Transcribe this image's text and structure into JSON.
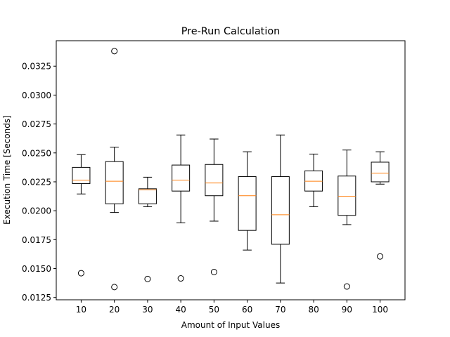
{
  "chart_data": {
    "type": "box",
    "title": "Pre-Run Calculation",
    "xlabel": "Amount of Input Values",
    "ylabel": "Execution Time [Seconds]",
    "categories": [
      "10",
      "20",
      "30",
      "40",
      "50",
      "60",
      "70",
      "80",
      "90",
      "100"
    ],
    "ylim": [
      0.0123,
      0.0347
    ],
    "yticks": [
      0.0125,
      0.015,
      0.0175,
      0.02,
      0.0225,
      0.025,
      0.0275,
      0.03,
      0.0325
    ],
    "ytick_labels": [
      "0.0125",
      "0.0150",
      "0.0175",
      "0.0200",
      "0.0225",
      "0.0250",
      "0.0275",
      "0.0300",
      "0.0325"
    ],
    "boxes": [
      {
        "category": "10",
        "whisker_low": 0.02145,
        "q1": 0.02235,
        "median": 0.02265,
        "q3": 0.02375,
        "whisker_high": 0.02485,
        "outliers": [
          0.0146
        ]
      },
      {
        "category": "20",
        "whisker_low": 0.01985,
        "q1": 0.0206,
        "median": 0.02255,
        "q3": 0.02425,
        "whisker_high": 0.0255,
        "outliers": [
          0.0338,
          0.0134
        ]
      },
      {
        "category": "30",
        "whisker_low": 0.02035,
        "q1": 0.0206,
        "median": 0.0218,
        "q3": 0.0219,
        "whisker_high": 0.0229,
        "outliers": [
          0.0141
        ]
      },
      {
        "category": "40",
        "whisker_low": 0.01895,
        "q1": 0.0217,
        "median": 0.02265,
        "q3": 0.02395,
        "whisker_high": 0.02655,
        "outliers": [
          0.01415
        ]
      },
      {
        "category": "50",
        "whisker_low": 0.0191,
        "q1": 0.0213,
        "median": 0.0224,
        "q3": 0.024,
        "whisker_high": 0.0262,
        "outliers": [
          0.0147
        ]
      },
      {
        "category": "60",
        "whisker_low": 0.0166,
        "q1": 0.0183,
        "median": 0.0213,
        "q3": 0.02295,
        "whisker_high": 0.0251,
        "outliers": []
      },
      {
        "category": "70",
        "whisker_low": 0.01375,
        "q1": 0.0171,
        "median": 0.01965,
        "q3": 0.02295,
        "whisker_high": 0.02655,
        "outliers": []
      },
      {
        "category": "80",
        "whisker_low": 0.02035,
        "q1": 0.0217,
        "median": 0.02255,
        "q3": 0.02345,
        "whisker_high": 0.0249,
        "outliers": []
      },
      {
        "category": "90",
        "whisker_low": 0.0188,
        "q1": 0.0196,
        "median": 0.02125,
        "q3": 0.023,
        "whisker_high": 0.02525,
        "outliers": [
          0.01345
        ]
      },
      {
        "category": "100",
        "whisker_low": 0.0223,
        "q1": 0.0225,
        "median": 0.02325,
        "q3": 0.0242,
        "whisker_high": 0.0251,
        "outliers": [
          0.01605
        ]
      }
    ],
    "grid": false,
    "colors": {
      "box": "#000000",
      "median": "#ff7f0e",
      "outlier": "#000000"
    }
  }
}
